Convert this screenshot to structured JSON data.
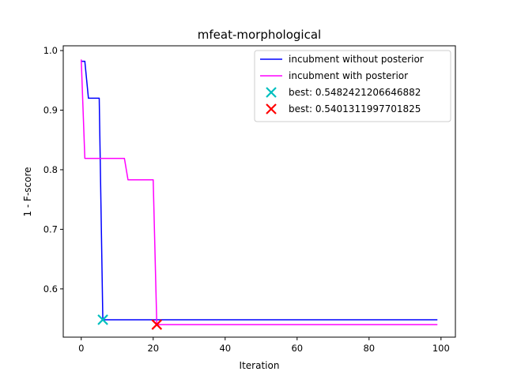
{
  "chart_data": {
    "type": "line",
    "title": "mfeat-morphological",
    "xlabel": "Iteration",
    "ylabel": "1 - F-score",
    "xlim": [
      -5,
      104
    ],
    "ylim": [
      0.519,
      1.008
    ],
    "xticks": [
      0,
      20,
      40,
      60,
      80,
      100
    ],
    "yticks": [
      0.6,
      0.7,
      0.8,
      0.9,
      1.0
    ],
    "xtick_labels": [
      "0",
      "20",
      "40",
      "60",
      "80",
      "100"
    ],
    "ytick_labels": [
      "0.6",
      "0.7",
      "0.8",
      "0.9",
      "1.0"
    ],
    "legend_position": "top-right",
    "series": [
      {
        "name": "incubment without posterior",
        "color": "#0000ff",
        "x": [
          0,
          1,
          2,
          5,
          6,
          7,
          99
        ],
        "y": [
          0.982,
          0.982,
          0.92,
          0.92,
          0.5482,
          0.5482,
          0.5482
        ]
      },
      {
        "name": "incubment with posterior",
        "color": "#ff00ff",
        "x": [
          0,
          1,
          12,
          13,
          20,
          21,
          99
        ],
        "y": [
          0.985,
          0.819,
          0.819,
          0.783,
          0.783,
          0.5401,
          0.5401
        ]
      }
    ],
    "markers": [
      {
        "label": "best: 0.5482421206646882",
        "x": 6,
        "y": 0.5482421206646882,
        "color": "#00bfbf",
        "symbol": "x"
      },
      {
        "label": "best: 0.5401311997701825",
        "x": 21,
        "y": 0.5401311997701825,
        "color": "#ff0000",
        "symbol": "x"
      }
    ]
  }
}
